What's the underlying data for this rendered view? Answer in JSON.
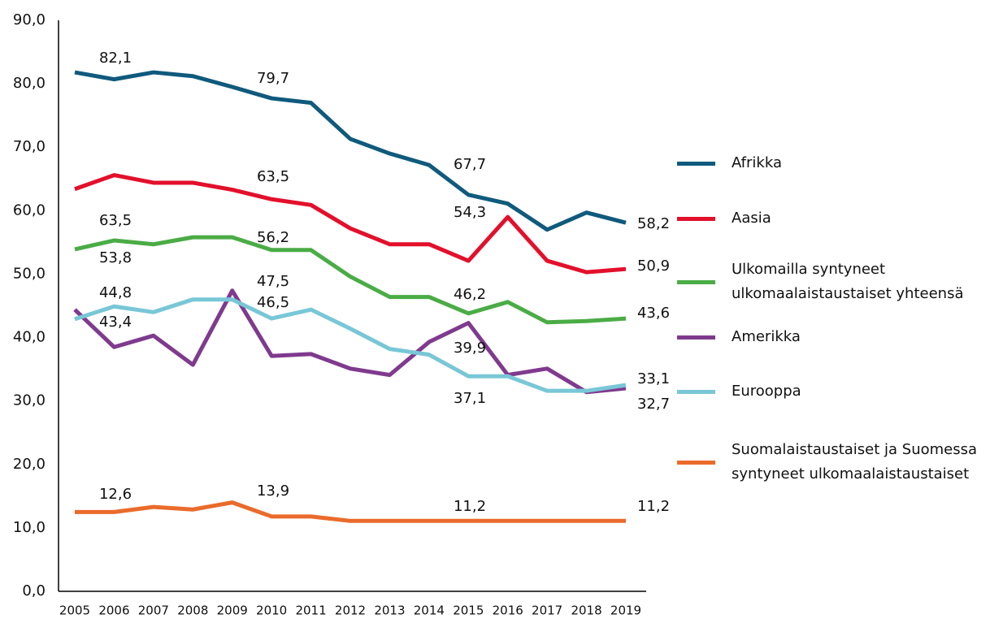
{
  "chart_data": {
    "type": "line",
    "categories": [
      "2005",
      "2006",
      "2007",
      "2008",
      "2009",
      "2010",
      "2011",
      "2012",
      "2013",
      "2014",
      "2015",
      "2016",
      "2017",
      "2018",
      "2019"
    ],
    "series": [
      {
        "name": "Afrikka",
        "color": "#0f5a7d",
        "values": [
          81.8,
          80.7,
          81.8,
          81.2,
          79.5,
          77.7,
          77.0,
          71.3,
          69.0,
          67.2,
          62.5,
          61.1,
          57.0,
          59.7,
          58.1
        ]
      },
      {
        "name": "Aasia",
        "color": "#e3102b",
        "values": [
          63.4,
          65.6,
          64.4,
          64.4,
          63.3,
          61.8,
          60.9,
          57.2,
          54.7,
          54.7,
          52.1,
          59.0,
          52.1,
          50.3,
          50.8
        ]
      },
      {
        "name": "Ulkomailla syntyneet ulkomaalaistaustaiset yhteensä",
        "color": "#4aac45",
        "values": [
          53.9,
          55.3,
          54.7,
          55.8,
          55.8,
          53.8,
          53.8,
          49.6,
          46.4,
          46.4,
          43.8,
          45.6,
          42.4,
          42.6,
          43.0
        ]
      },
      {
        "name": "Amerikka",
        "color": "#7f3a8e",
        "values": [
          44.4,
          38.5,
          40.3,
          35.7,
          47.4,
          37.1,
          37.4,
          35.1,
          34.1,
          39.3,
          42.3,
          34.1,
          35.1,
          31.4,
          32.0
        ]
      },
      {
        "name": "Eurooppa",
        "color": "#78c7d7",
        "values": [
          42.9,
          44.9,
          44.0,
          46.0,
          46.0,
          43.0,
          44.4,
          41.4,
          38.2,
          37.3,
          33.9,
          33.9,
          31.6,
          31.6,
          32.5
        ]
      },
      {
        "name": "Suomalaistaustaiset ja Suomessa syntyneet ulkomaalaistaustaiset",
        "color": "#ea6b2b",
        "values": [
          12.5,
          12.5,
          13.3,
          12.9,
          14.0,
          11.8,
          11.8,
          11.1,
          11.1,
          11.1,
          11.1,
          11.1,
          11.1,
          11.1,
          11.1
        ]
      }
    ],
    "ylim": [
      0,
      90
    ],
    "yticks": [
      {
        "value": 0,
        "label": "0,0"
      },
      {
        "value": 10,
        "label": "10,0"
      },
      {
        "value": 20,
        "label": "20,0"
      },
      {
        "value": 30,
        "label": "30,0"
      },
      {
        "value": 40,
        "label": "40,0"
      },
      {
        "value": 50,
        "label": "50,0"
      },
      {
        "value": 60,
        "label": "60,0"
      },
      {
        "value": 70,
        "label": "70,0"
      },
      {
        "value": 80,
        "label": "80,0"
      },
      {
        "value": 90,
        "label": "90,0"
      }
    ],
    "grid": false,
    "legend": "right",
    "annotations": [
      "82,1",
      "79,7",
      "67,7",
      "58,2",
      "63,5",
      "63,5",
      "54,3",
      "50,9",
      "53,8",
      "56,2",
      "46,2",
      "43,6",
      "44,8",
      "43,4",
      "47,5",
      "46,5",
      "39,9",
      "37,1",
      "33,1",
      "32,7",
      "12,6",
      "13,9",
      "11,2",
      "11,2"
    ]
  }
}
